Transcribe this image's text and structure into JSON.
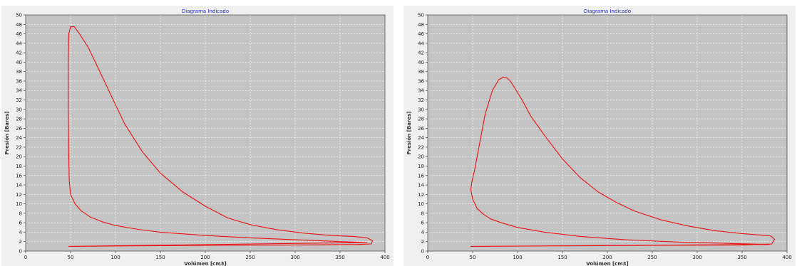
{
  "chart_data": [
    {
      "type": "line",
      "title": "Diagrama Indicado",
      "xlabel": "Volúmen [cm3]",
      "ylabel": "Presión [Bares]",
      "xlim": [
        0,
        400
      ],
      "ylim": [
        0,
        50
      ],
      "x_ticks": [
        "0",
        "50",
        "100",
        "150",
        "200",
        "250",
        "300",
        "350",
        "400"
      ],
      "y_ticks": [
        "0",
        "2",
        "4",
        "6",
        "8",
        "10",
        "12",
        "14",
        "16",
        "18",
        "20",
        "22",
        "24",
        "26",
        "28",
        "30",
        "32",
        "34",
        "36",
        "38",
        "40",
        "42",
        "44",
        "46",
        "48",
        "50"
      ],
      "grid": true,
      "color": "#ee1111",
      "series": [
        {
          "points": [
            [
              48,
              1
            ],
            [
              120,
              1.1
            ],
            [
              200,
              1.2
            ],
            [
              300,
              1.3
            ],
            [
              370,
              1.4
            ],
            [
              385,
              1.5
            ],
            [
              386,
              2.2
            ],
            [
              380,
              2.8
            ],
            [
              365,
              3.1
            ],
            [
              340,
              3.3
            ],
            [
              310,
              3.8
            ],
            [
              280,
              4.5
            ],
            [
              250,
              5.6
            ],
            [
              225,
              7
            ],
            [
              200,
              9.5
            ],
            [
              175,
              12.5
            ],
            [
              150,
              16.5
            ],
            [
              130,
              21
            ],
            [
              110,
              27
            ],
            [
              100,
              31
            ],
            [
              90,
              35
            ],
            [
              80,
              39
            ],
            [
              70,
              43
            ],
            [
              60,
              46
            ],
            [
              54,
              47.5
            ],
            [
              50,
              47.5
            ],
            [
              48,
              46
            ],
            [
              47.5,
              40
            ],
            [
              47.5,
              30
            ],
            [
              48,
              20
            ],
            [
              48.5,
              15
            ],
            [
              50,
              12
            ],
            [
              55,
              10
            ],
            [
              62,
              8.5
            ],
            [
              72,
              7.2
            ],
            [
              85,
              6.2
            ],
            [
              100,
              5.4
            ],
            [
              125,
              4.6
            ],
            [
              150,
              4
            ],
            [
              200,
              3.3
            ],
            [
              250,
              2.8
            ],
            [
              300,
              2.4
            ],
            [
              350,
              2
            ],
            [
              380,
              1.8
            ]
          ]
        }
      ]
    },
    {
      "type": "line",
      "title": "Diagrama Indicado",
      "xlabel": "Volúmen [cm3]",
      "ylabel": "Presión [Bares]",
      "xlim": [
        0,
        400
      ],
      "ylim": [
        0,
        50
      ],
      "x_ticks": [
        "0",
        "50",
        "100",
        "150",
        "200",
        "250",
        "300",
        "350",
        "400"
      ],
      "y_ticks": [
        "0",
        "2",
        "4",
        "6",
        "8",
        "10",
        "12",
        "14",
        "16",
        "18",
        "20",
        "22",
        "24",
        "26",
        "28",
        "30",
        "32",
        "34",
        "36",
        "38",
        "40",
        "42",
        "44",
        "46",
        "48",
        "50"
      ],
      "grid": true,
      "color": "#ee1111",
      "series": [
        {
          "points": [
            [
              48,
              1
            ],
            [
              150,
              1.1
            ],
            [
              250,
              1.2
            ],
            [
              350,
              1.3
            ],
            [
              383,
              1.5
            ],
            [
              386,
              2.5
            ],
            [
              382,
              3.2
            ],
            [
              370,
              3.4
            ],
            [
              350,
              3.7
            ],
            [
              320,
              4.3
            ],
            [
              290,
              5.3
            ],
            [
              260,
              6.6
            ],
            [
              230,
              8.5
            ],
            [
              210,
              10.3
            ],
            [
              190,
              12.5
            ],
            [
              170,
              15.5
            ],
            [
              150,
              19.5
            ],
            [
              130,
              24.5
            ],
            [
              115,
              28.5
            ],
            [
              105,
              32
            ],
            [
              97,
              34.5
            ],
            [
              92,
              36
            ],
            [
              88,
              36.7
            ],
            [
              84,
              36.8
            ],
            [
              79,
              36.3
            ],
            [
              72,
              34
            ],
            [
              64,
              29
            ],
            [
              57,
              22
            ],
            [
              52,
              17
            ],
            [
              49,
              14.5
            ],
            [
              48,
              13
            ],
            [
              50,
              11
            ],
            [
              55,
              9
            ],
            [
              62,
              7.8
            ],
            [
              70,
              6.8
            ],
            [
              82,
              6
            ],
            [
              100,
              5
            ],
            [
              130,
              4
            ],
            [
              170,
              3.1
            ],
            [
              220,
              2.4
            ],
            [
              280,
              1.9
            ],
            [
              340,
              1.6
            ],
            [
              380,
              1.4
            ]
          ]
        }
      ]
    }
  ]
}
